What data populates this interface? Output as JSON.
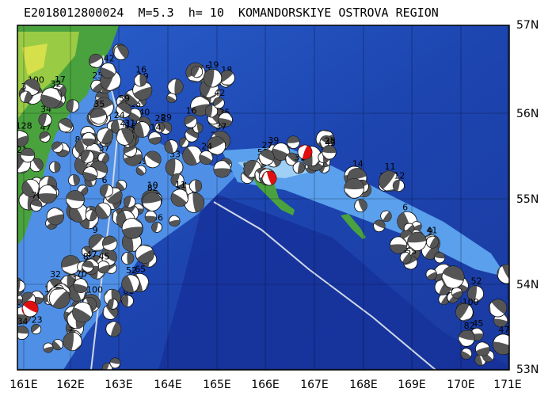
{
  "header": {
    "title": "E2018012800024  M=5.3  h= 10  KOMANDORSKIYE OSTROVA REGION"
  },
  "axes": {
    "latitude_labels": [
      "57N",
      "56N",
      "55N",
      "54N",
      "53N"
    ],
    "longitude_labels": [
      "161E",
      "162E",
      "163E",
      "164E",
      "165E",
      "166E",
      "167E",
      "168E",
      "169E",
      "170E",
      "171E"
    ]
  },
  "legend_colors": {
    "ocean_deep": "#1f3fa8",
    "ocean_mid": "#2f6fd8",
    "ocean_shelf": "#6fb0f0",
    "land_low": "#4aa23e",
    "land_high": "#d6e04a",
    "mechanism_mainshock": "#e11010",
    "mechanism_other": "#555555"
  },
  "mechanism_labels": [
    "100",
    "47",
    "8",
    "17",
    "128",
    "13",
    "70",
    "21",
    "32",
    "34",
    "3",
    "5",
    "23",
    "25",
    "40",
    "35",
    "15",
    "18",
    "19",
    "16",
    "42",
    "59",
    "39",
    "54",
    "29",
    "27",
    "37",
    "24",
    "2",
    "33",
    "43",
    "31",
    "28",
    "14",
    "10",
    "6",
    "11",
    "12",
    "41",
    "36",
    "55",
    "9",
    "64",
    "65",
    "81",
    "52",
    "45",
    "82"
  ]
}
